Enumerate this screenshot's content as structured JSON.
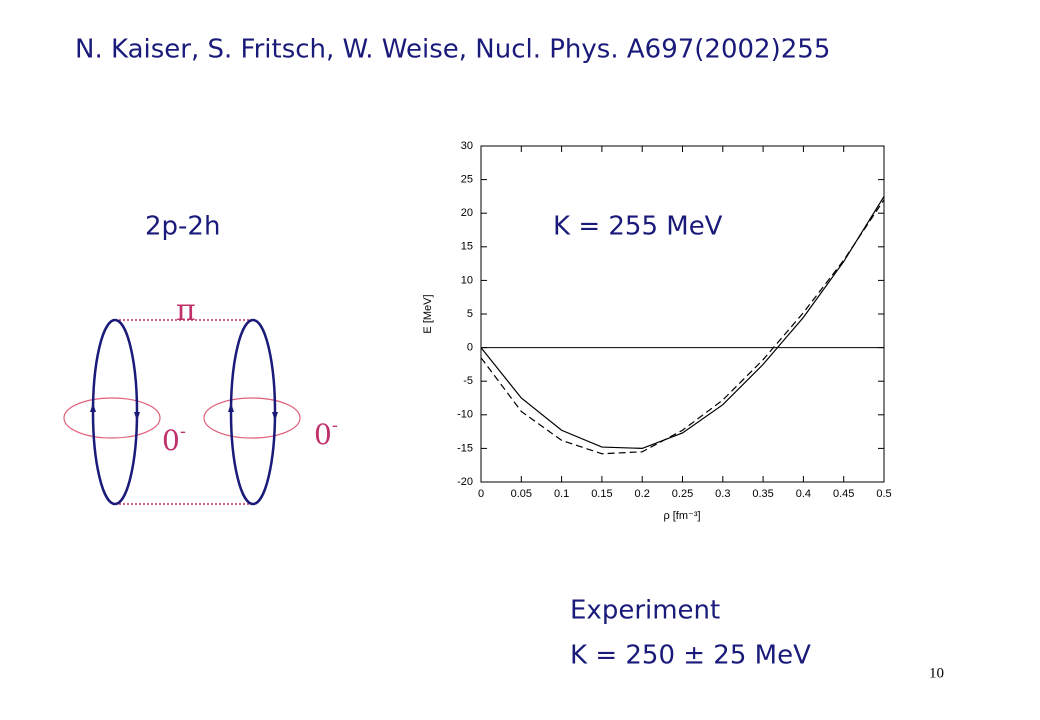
{
  "slide": {
    "reference": "N. Kaiser, S. Fritsch, W. Weise, Nucl. Phys. A697(2002)255",
    "diagram_label": "2p-2h",
    "result": "K = 255 MeV",
    "pion": "π",
    "vertex_labels": [
      {
        "base": "0",
        "sup": "-"
      },
      {
        "base": "0",
        "sup": "-"
      }
    ],
    "experiment_title": "Experiment",
    "experiment_value": "K = 250 ± 25 MeV",
    "page_number": "10"
  },
  "chart_data": {
    "type": "line",
    "x_label": "ρ [fm⁻³]",
    "y_label": "E [MeV]",
    "x": [
      0,
      0.05,
      0.1,
      0.15,
      0.2,
      0.25,
      0.3,
      0.35,
      0.4,
      0.45,
      0.5
    ],
    "series": [
      {
        "color": "#000000",
        "dash": "solid",
        "values": [
          0,
          -7.5,
          -12.3,
          -14.8,
          -15.0,
          -12.7,
          -8.5,
          -2.5,
          4.5,
          12.8,
          22.5
        ]
      },
      {
        "color": "#000000",
        "dash": "dashed",
        "values": [
          -1.5,
          -9.5,
          -13.8,
          -15.8,
          -15.5,
          -12.3,
          -7.8,
          -1.8,
          5.2,
          13,
          22
        ]
      }
    ],
    "hline": 0,
    "xlim": [
      0,
      0.5
    ],
    "ylim": [
      -20,
      30
    ],
    "xticks": [
      0,
      0.05,
      0.1,
      0.15,
      0.2,
      0.25,
      0.3,
      0.35,
      0.4,
      0.45,
      0.5
    ],
    "yticks": [
      -20,
      -15,
      -10,
      -5,
      0,
      5,
      10,
      15,
      20,
      25,
      30
    ]
  }
}
